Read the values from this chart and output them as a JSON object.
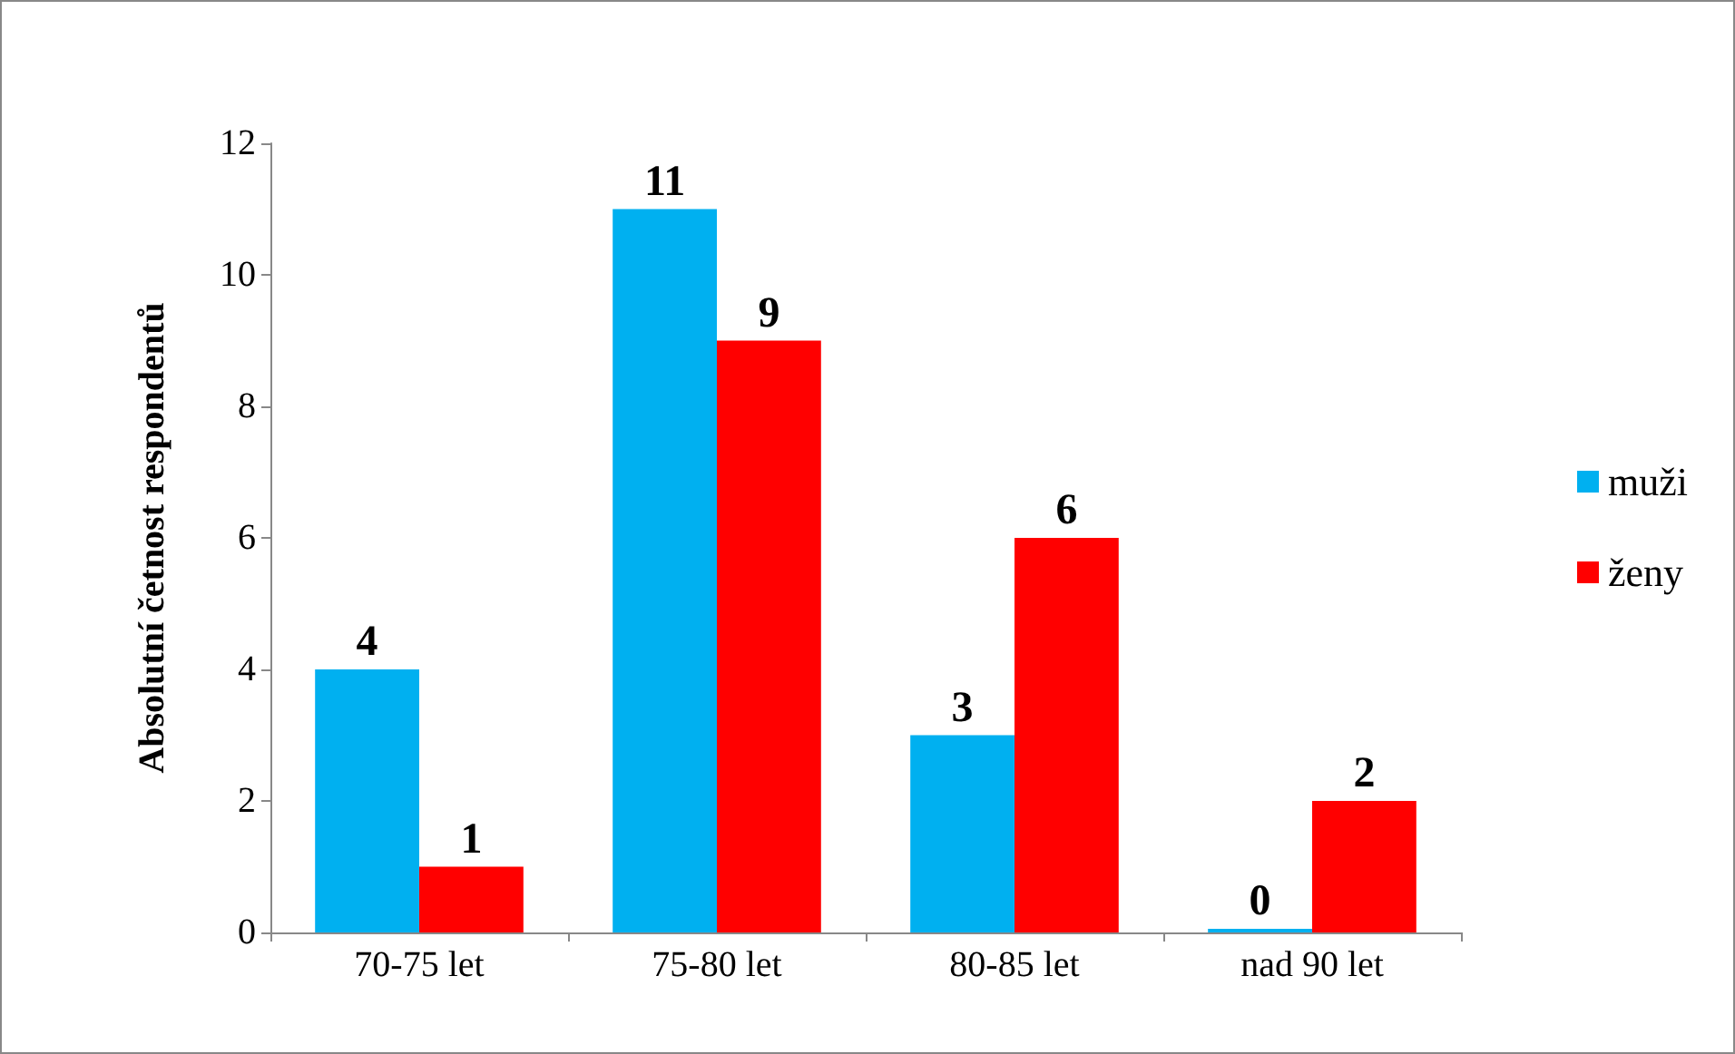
{
  "chart_data": {
    "type": "bar",
    "ylabel": "Absolutní četnost respondentů",
    "categories": [
      "70-75 let",
      "75-80 let",
      "80-85 let",
      "nad 90 let"
    ],
    "series": [
      {
        "name": "muži",
        "color": "#00b0f0",
        "values": [
          4,
          11,
          3,
          0
        ]
      },
      {
        "name": "ženy",
        "color": "#ff0000",
        "values": [
          1,
          9,
          6,
          2
        ]
      }
    ],
    "ylim": [
      0,
      12
    ],
    "yticks": [
      0,
      2,
      4,
      6,
      8,
      10,
      12
    ],
    "grid": false,
    "legend": "right",
    "data_labels": true
  }
}
